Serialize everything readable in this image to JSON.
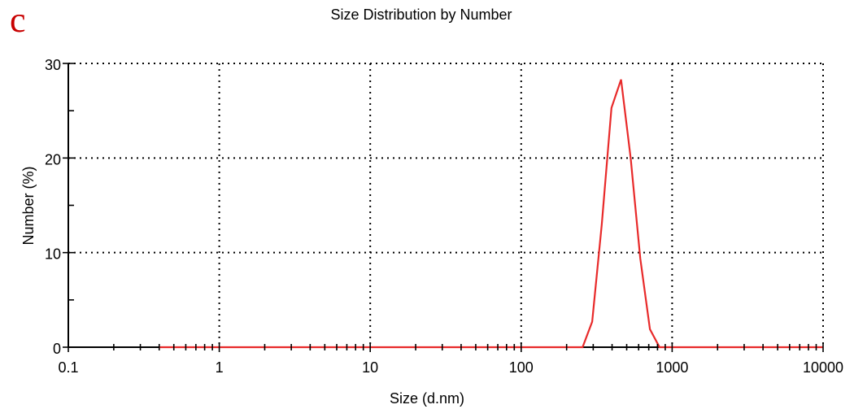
{
  "panel_label": "c",
  "colors": {
    "panel_label": "#c80000",
    "axis": "#000000",
    "grid": "#000000",
    "background": "#ffffff"
  },
  "chart_data": {
    "type": "line",
    "title": "Size Distribution by Number",
    "xlabel": "Size (d.nm)",
    "ylabel": "Number (%)",
    "x_scale": "log",
    "xlim": [
      0.1,
      10000
    ],
    "ylim": [
      0,
      30
    ],
    "x_tick_labels": [
      "0.1",
      "1",
      "10",
      "100",
      "1000",
      "10000"
    ],
    "y_tick_labels": [
      "0",
      "10",
      "20",
      "30"
    ],
    "grid": true,
    "series": [
      {
        "color": "#e82a2a",
        "x": [
          0.4,
          255,
          295.3,
          342,
          396.1,
          458.7,
          531.2,
          615.1,
          712.4,
          825,
          10000
        ],
        "y": [
          0,
          0,
          2.7,
          13.0,
          25.3,
          28.3,
          20.0,
          9.4,
          1.9,
          0,
          0
        ]
      }
    ]
  }
}
